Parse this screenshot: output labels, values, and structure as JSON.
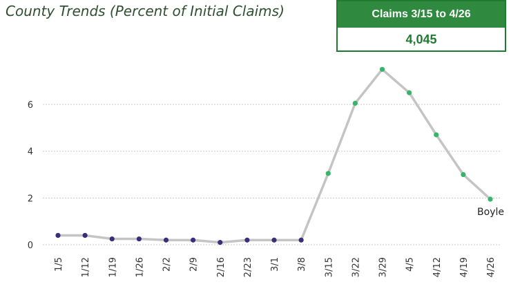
{
  "header": {
    "title": "County Trends (Percent of Initial Claims)"
  },
  "kpi": {
    "label": "Claims 3/15 to 4/26",
    "value": "4,045"
  },
  "colors": {
    "title": "#2e5030",
    "kpi_header_bg": "#2f8a3f",
    "kpi_border": "#1f7a32",
    "line": "#c4c4c4",
    "point_before": "#3b2d7a",
    "point_after": "#35b56a",
    "grid": "#c8c8c8"
  },
  "chart_data": {
    "type": "line",
    "categories": [
      "1/5",
      "1/12",
      "1/19",
      "1/26",
      "2/2",
      "2/9",
      "2/16",
      "2/23",
      "3/1",
      "3/8",
      "3/15",
      "3/22",
      "3/29",
      "4/5",
      "4/12",
      "4/19",
      "4/26"
    ],
    "series": [
      {
        "values": [
          0.4,
          0.4,
          0.25,
          0.25,
          0.2,
          0.2,
          0.1,
          0.2,
          0.2,
          0.2,
          3.05,
          6.05,
          7.5,
          6.5,
          4.7,
          3.0,
          1.95
        ]
      }
    ],
    "point_color_groups": [
      "before",
      "before",
      "before",
      "before",
      "before",
      "before",
      "before",
      "before",
      "before",
      "before",
      "after",
      "after",
      "after",
      "after",
      "after",
      "after",
      "after"
    ],
    "yticks": [
      0,
      2,
      4,
      6
    ],
    "ylim": [
      0,
      8.1
    ],
    "grid": true,
    "annotation": {
      "text": "Boyle",
      "category": "4/26"
    }
  }
}
